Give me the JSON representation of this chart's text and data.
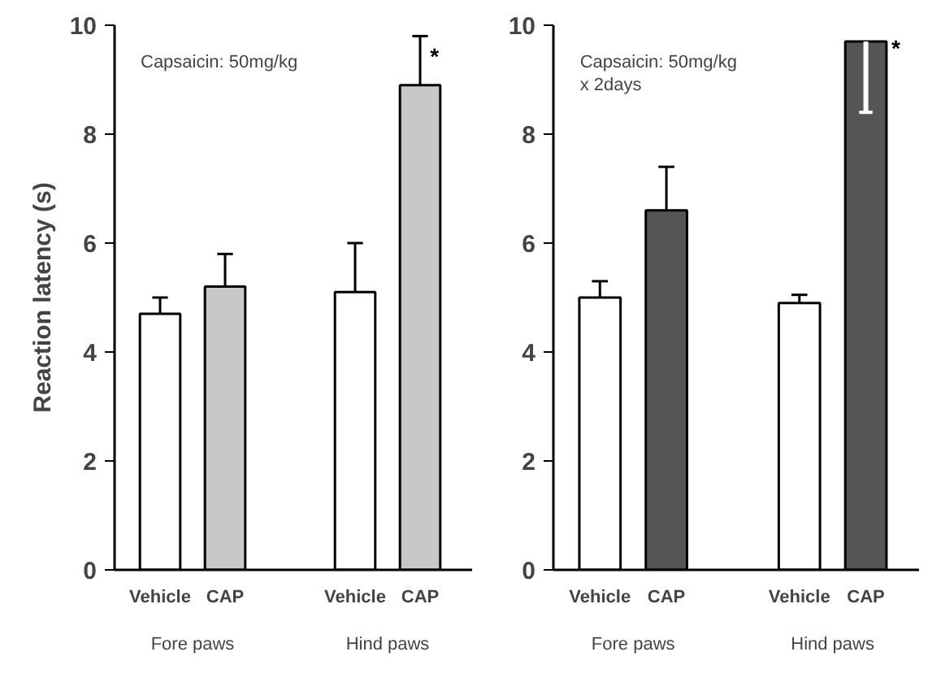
{
  "chart_data": [
    {
      "type": "bar",
      "ylabel": "Reaction latency (s)",
      "categories": [
        "Vehicle",
        "CAP",
        null,
        "Vehicle",
        "CAP"
      ],
      "values": [
        4.7,
        5.2,
        null,
        5.1,
        8.9
      ],
      "colors": [
        "#ffffff",
        "#c8c8c8",
        null,
        "#ffffff",
        "#c8c8c8"
      ],
      "errors": [
        [
          4.7,
          5.0
        ],
        [
          5.2,
          5.8
        ],
        null,
        [
          5.1,
          6.0
        ],
        [
          8.9,
          9.8
        ]
      ],
      "ylim": [
        0,
        10
      ],
      "yticks": [
        0,
        2,
        4,
        6,
        8,
        10
      ],
      "grid": false,
      "annotations": [
        "Capsaicin: 50mg/kg",
        "*",
        "Fore paws",
        "Hind paws"
      ]
    },
    {
      "type": "bar",
      "categories": [
        "Vehicle",
        "CAP",
        null,
        "Vehicle",
        "CAP"
      ],
      "values": [
        5.0,
        6.6,
        null,
        4.9,
        9.7
      ],
      "colors": [
        "#ffffff",
        "#555555",
        null,
        "#ffffff",
        "#555555"
      ],
      "errors": [
        [
          5.0,
          5.3
        ],
        [
          6.6,
          7.4
        ],
        null,
        [
          4.9,
          5.05
        ],
        [
          8.4,
          9.7
        ]
      ],
      "ylim": [
        0,
        10
      ],
      "yticks": [
        0,
        2,
        4,
        6,
        8,
        10
      ],
      "grid": false,
      "annotations": [
        "Capsaicin: 50mg/kg\nx 2days",
        "*",
        "Fore paws",
        "Hind paws"
      ]
    }
  ]
}
